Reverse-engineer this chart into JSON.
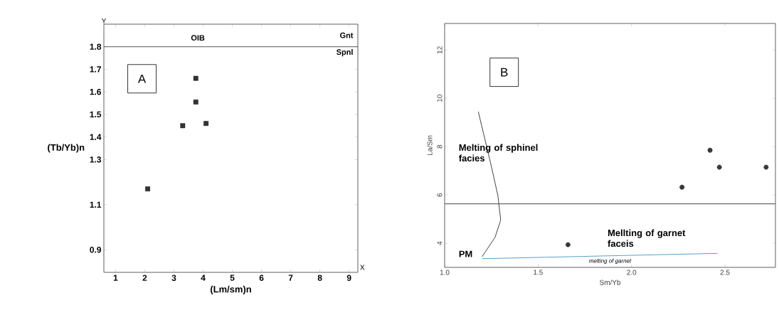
{
  "chart_data": [
    {
      "type": "scatter",
      "xlabel": "(Lm/sm)n",
      "ylabel": "(Tb/Yb)n",
      "xlim": [
        0.6,
        9.3
      ],
      "ylim": [
        0.8,
        1.9
      ],
      "xticks": [
        1,
        2,
        3,
        4,
        5,
        6,
        7,
        8,
        9
      ],
      "yticks": [
        0.9,
        1.1,
        1.3,
        1.4,
        1.5,
        1.6,
        1.7,
        1.8
      ],
      "series": [
        {
          "color": "#333333",
          "marker": "square",
          "x": [
            2.1,
            3.3,
            3.75,
            3.75,
            4.1
          ],
          "values": [
            1.17,
            1.45,
            1.555,
            1.66,
            1.46
          ]
        }
      ],
      "ref_lines": [
        {
          "axis": "y",
          "value": 1.8,
          "color": "#555555"
        }
      ],
      "annotations": [
        "A",
        "OIB",
        "Gnt",
        "Spnl",
        "X",
        "Y"
      ]
    },
    {
      "type": "scatter",
      "xlabel": "Sm/Yb",
      "ylabel": "La/Sm",
      "xlim": [
        1.0,
        2.77
      ],
      "ylim": [
        3.0,
        13.1
      ],
      "xticks": [
        {
          "value": 1.0,
          "label": "1.0"
        },
        {
          "value": 1.5,
          "label": "1.5"
        },
        {
          "value": 2.0,
          "label": "2.0"
        },
        {
          "value": 2.5,
          "label": "2.5"
        }
      ],
      "yticks": [
        4,
        6,
        8,
        10,
        12
      ],
      "series": [
        {
          "color": "#3a3a3a",
          "marker": "circle",
          "x": [
            1.66,
            2.27,
            2.42,
            2.47,
            2.72
          ],
          "values": [
            3.94,
            6.32,
            7.85,
            7.15,
            7.15
          ]
        },
        {
          "type": "line",
          "color": "#444444",
          "x": [
            1.18,
            1.25,
            1.285,
            1.3,
            1.27,
            1.2
          ],
          "values": [
            9.45,
            7.18,
            5.97,
            4.96,
            4.25,
            3.44
          ]
        },
        {
          "type": "line",
          "color": "#5aa0c8",
          "x": [
            1.2,
            2.46
          ],
          "values": [
            3.36,
            3.58
          ]
        }
      ],
      "ref_lines": [
        {
          "axis": "y",
          "value": 5.63,
          "color": "#444444"
        }
      ],
      "annotations": [
        "B",
        "Melting of sphinel facies",
        "Mellting of garnet faceis",
        "PM",
        "melting of garnet"
      ]
    }
  ]
}
